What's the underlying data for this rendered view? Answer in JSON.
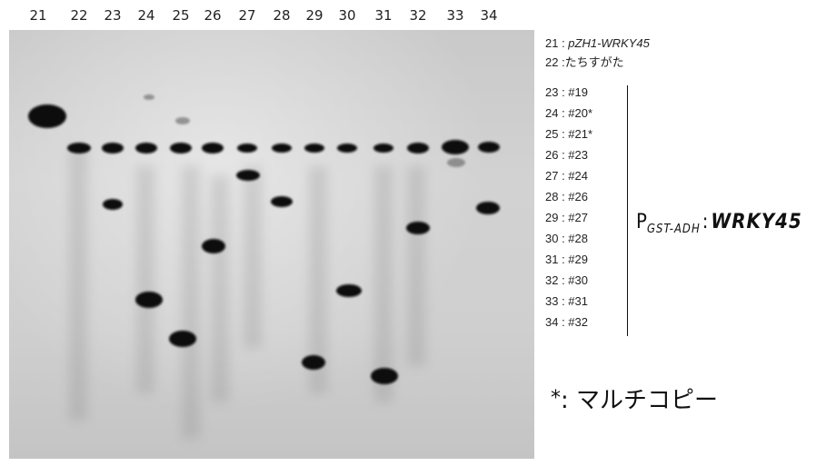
{
  "lanes": [
    "21",
    "22",
    "23",
    "24",
    "25",
    "26",
    "27",
    "28",
    "29",
    "30",
    "31",
    "32",
    "33",
    "34"
  ],
  "legend": {
    "entry_21_num": "21 : ",
    "entry_21_name": "pZH1-WRKY45",
    "entry_22": "22 :たちすがた",
    "entries": [
      "23 : #19",
      "24 : #20*",
      "25 : #21*",
      "26 : #23",
      "27 : #24",
      "28 : #26",
      "29 : #27",
      "30 : #28",
      "31 : #29",
      "32 : #30",
      "33 : #31",
      "34 : #32"
    ]
  },
  "construct": {
    "prefix": "P",
    "subscript": "GST-ADH",
    "separator": ":",
    "gene": "WRKY45"
  },
  "footnote": {
    "star": "*",
    "text": ": マルチコピー"
  }
}
